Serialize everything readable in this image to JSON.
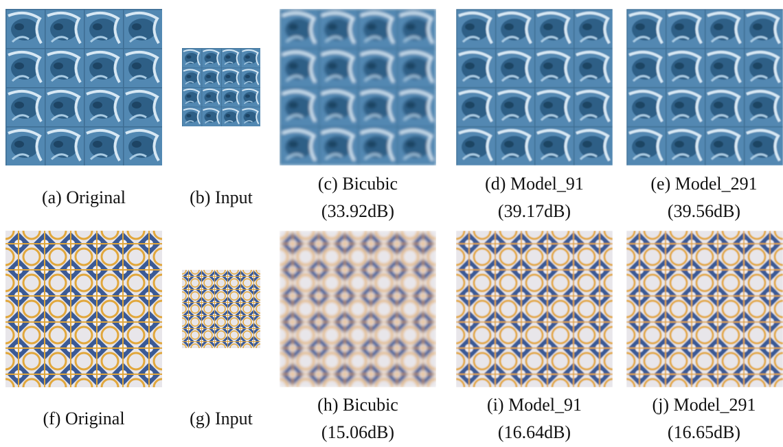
{
  "rows": [
    {
      "panels": [
        {
          "caption": [
            "(a) Original"
          ]
        },
        {
          "caption": [
            "(b) Input"
          ]
        },
        {
          "caption": [
            "(c) Bicubic",
            "(33.92dB)"
          ]
        },
        {
          "caption": [
            "(d) Model_91",
            "(39.17dB)"
          ]
        },
        {
          "caption": [
            "(e) Model_291",
            "(39.56dB)"
          ]
        }
      ]
    },
    {
      "panels": [
        {
          "caption": [
            "(f) Original"
          ]
        },
        {
          "caption": [
            "(g) Input"
          ]
        },
        {
          "caption": [
            "(h) Bicubic",
            "(15.06dB)"
          ]
        },
        {
          "caption": [
            "(i) Model_91",
            "(16.64dB)"
          ]
        },
        {
          "caption": [
            "(j) Model_291",
            "(16.65dB)"
          ]
        }
      ]
    }
  ]
}
